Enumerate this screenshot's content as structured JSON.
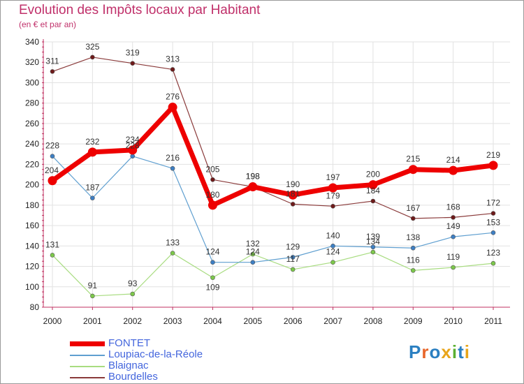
{
  "header": {
    "title": "Evolution des Impôts locaux par Habitant",
    "subtitle": "(en € et par an)"
  },
  "logo": {
    "text": "Proxiti",
    "colors": [
      "#2a7fc1",
      "#e8662a",
      "#2a7fc1",
      "#e8a51a",
      "#5bb031",
      "#2a7fc1",
      "#e8a51a"
    ]
  },
  "chart_data": {
    "type": "line",
    "title": "Evolution des Impôts locaux par Habitant",
    "subtitle": "(en € et par an)",
    "xlabel": "",
    "ylabel": "",
    "x": [
      "2000",
      "2001",
      "2002",
      "2003",
      "2004",
      "2005",
      "2006",
      "2007",
      "2008",
      "2009",
      "2010",
      "2011"
    ],
    "ylim": [
      80,
      340
    ],
    "yticks": [
      80,
      100,
      120,
      140,
      160,
      180,
      200,
      220,
      240,
      260,
      280,
      300,
      320,
      340
    ],
    "grid": true,
    "legend_position": "bottom-left",
    "series": [
      {
        "name": "FONTET",
        "color": "#ee0000",
        "point_color": "#ee0000",
        "width": 7,
        "radius": 6.5,
        "values": [
          204,
          232,
          234,
          276,
          180,
          198,
          190,
          197,
          200,
          215,
          214,
          219
        ],
        "label_offsets": [
          [
            -1,
            -11
          ],
          [
            0,
            -11
          ],
          [
            0,
            -11
          ],
          [
            0,
            -11
          ],
          [
            0,
            -11
          ],
          [
            0,
            -11
          ],
          [
            0,
            -11
          ],
          [
            0,
            -11
          ],
          [
            0,
            -11
          ],
          [
            0,
            -11
          ],
          [
            0,
            -11
          ],
          [
            0,
            -11
          ]
        ]
      },
      {
        "name": "Loupiac-de-la-Réole",
        "color": "#5f9fd0",
        "point_color": "#3d7fc4",
        "width": 1.2,
        "radius": 3,
        "values": [
          228,
          187,
          228,
          216,
          124,
          124,
          129,
          140,
          139,
          138,
          149,
          153
        ],
        "label_offsets": [
          [
            0,
            -11
          ],
          [
            0,
            -11
          ],
          [
            0,
            -11
          ],
          [
            0,
            -11
          ],
          [
            0,
            -11
          ],
          [
            0,
            -11
          ],
          [
            0,
            -11
          ],
          [
            0,
            -11
          ],
          [
            0,
            -11
          ],
          [
            0,
            -11
          ],
          [
            0,
            -11
          ],
          [
            0,
            -11
          ]
        ]
      },
      {
        "name": "Blaignac",
        "color": "#a8dc80",
        "point_color": "#7cc84a",
        "width": 1.2,
        "radius": 3,
        "values": [
          131,
          91,
          93,
          133,
          109,
          132,
          117,
          124,
          134,
          116,
          119,
          123
        ],
        "label_offsets": [
          [
            0,
            -11
          ],
          [
            0,
            -11
          ],
          [
            0,
            -11
          ],
          [
            0,
            -11
          ],
          [
            0,
            18
          ],
          [
            0,
            -11
          ],
          [
            0,
            -11
          ],
          [
            0,
            -11
          ],
          [
            0,
            -11
          ],
          [
            0,
            -11
          ],
          [
            0,
            -11
          ],
          [
            0,
            -11
          ]
        ]
      },
      {
        "name": "Bourdelles",
        "color": "#8a3a3a",
        "point_color": "#6e1a1a",
        "width": 1.2,
        "radius": 3,
        "values": [
          311,
          325,
          319,
          313,
          205,
          198,
          181,
          179,
          184,
          167,
          168,
          172
        ],
        "label_offsets": [
          [
            0,
            -11
          ],
          [
            0,
            -11
          ],
          [
            0,
            -11
          ],
          [
            0,
            -11
          ],
          [
            0,
            -11
          ],
          [
            0,
            -11
          ],
          [
            0,
            -11
          ],
          [
            0,
            -11
          ],
          [
            0,
            -11
          ],
          [
            0,
            -11
          ],
          [
            0,
            -11
          ],
          [
            0,
            -11
          ]
        ]
      }
    ]
  }
}
